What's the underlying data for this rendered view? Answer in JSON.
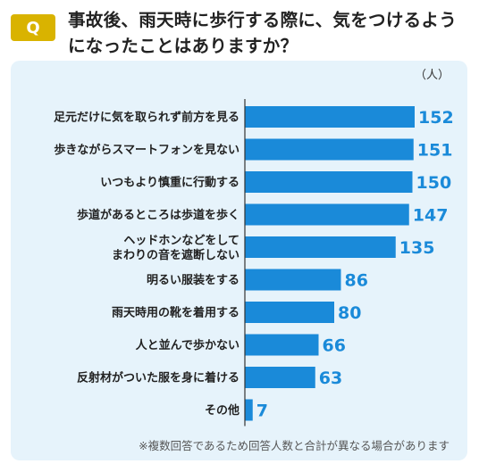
{
  "question": {
    "badge": "Q",
    "text": "事故後、雨天時に歩行する際に、気をつけるようになったことはありますか？"
  },
  "chart_data": {
    "type": "bar",
    "orientation": "horizontal",
    "unit_label": "（人）",
    "categories": [
      "足元だけに気を取られず前方を見る",
      "歩きながらスマートフォンを見ない",
      "いつもより慎重に行動する",
      "歩道があるところは歩道を歩く",
      "ヘッドホンなどをして\nまわりの音を遮断しない",
      "明るい服装をする",
      "雨天時用の靴を着用する",
      "人と並んで歩かない",
      "反射材がついた服を身に着ける",
      "その他"
    ],
    "values": [
      152,
      151,
      150,
      147,
      135,
      86,
      80,
      66,
      63,
      7
    ],
    "xlim": [
      0,
      152
    ],
    "grid": false,
    "bar_color": "#1a8ad9",
    "value_color": "#1a8ad9",
    "footnote": "※複数回答であるため回答人数と合計が異なる場合があります"
  }
}
